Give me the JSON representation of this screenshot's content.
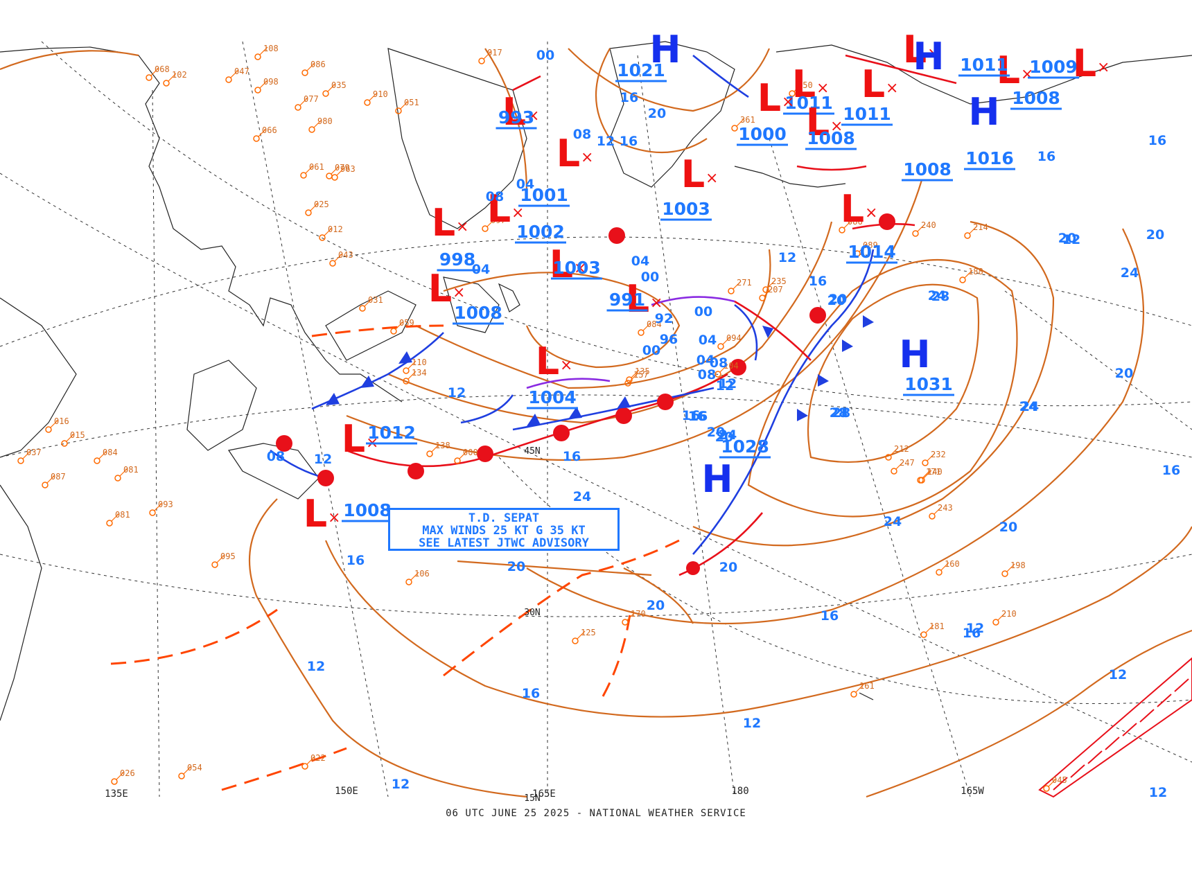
{
  "footer": "06 UTC JUNE 25 2025 - NATIONAL WEATHER SERVICE",
  "longitude_labels": [
    "135E",
    "150E",
    "165E",
    "180",
    "165W"
  ],
  "latitude_labels": [
    "15N",
    "30N",
    "45N"
  ],
  "advisory": {
    "line1": "T.D. SEPAT",
    "line2": "MAX WINDS 25 KT G 35 KT",
    "line3": "SEE LATEST JTWC ADVISORY"
  },
  "colors": {
    "isobar": "#d2691e",
    "low_symbol": "#ee1111",
    "high_symbol": "#1530ee",
    "labels": "#1f78ff",
    "cold_front": "#1f3fe0",
    "warm_front": "#e8101a",
    "occluded_front": "#8a2be2",
    "trough": "#ff4500"
  },
  "pressure_systems": [
    {
      "type": "L",
      "value": "993"
    },
    {
      "type": "L",
      "value": "1001"
    },
    {
      "type": "L",
      "value": "1002"
    },
    {
      "type": "L",
      "value": "998"
    },
    {
      "type": "L",
      "value": "1003"
    },
    {
      "type": "L",
      "value": "1003"
    },
    {
      "type": "L",
      "value": "991"
    },
    {
      "type": "L",
      "value": "1008"
    },
    {
      "type": "L",
      "value": "1004"
    },
    {
      "type": "L",
      "value": "1012"
    },
    {
      "type": "L",
      "value": "1008"
    },
    {
      "type": "L",
      "value": "1011"
    },
    {
      "type": "L",
      "value": "1011"
    },
    {
      "type": "L",
      "value": "1008"
    },
    {
      "type": "L",
      "value": "1014"
    },
    {
      "type": "L",
      "value": "1008"
    },
    {
      "type": "H",
      "value": "1021"
    },
    {
      "type": "H",
      "value": "1028"
    },
    {
      "type": "H",
      "value": "1031"
    },
    {
      "type": "H",
      "value": "1016"
    },
    {
      "type": "L",
      "value": "1008"
    },
    {
      "type": "L",
      "value": "1009"
    },
    {
      "type": "L",
      "value": "1000"
    },
    {
      "type": "H",
      "value": "1011"
    }
  ],
  "isobar_labels": [
    "00",
    "16",
    "20",
    "08",
    "12",
    "16",
    "04",
    "08",
    "04",
    "00",
    "04",
    "96",
    "92",
    "00",
    "04",
    "08",
    "12",
    "16",
    "20",
    "24",
    "28",
    "28",
    "24",
    "20",
    "24",
    "28",
    "24",
    "20",
    "16",
    "16",
    "12",
    "20",
    "24",
    "20",
    "16",
    "12",
    "16",
    "12",
    "16",
    "20",
    "24",
    "20",
    "16",
    "12",
    "08",
    "12",
    "12",
    "16",
    "20",
    "16",
    "12",
    "08",
    "04",
    "00",
    "12",
    "16",
    "20",
    "12",
    "16",
    "20",
    "24",
    "20",
    "16",
    "12",
    "12"
  ],
  "station_samples": [
    "108",
    "086",
    "035",
    "047",
    "098",
    "077",
    "910",
    "980",
    "066",
    "061",
    "079",
    "963",
    "025",
    "012",
    "043",
    "031",
    "059",
    "051",
    "017",
    "068",
    "102",
    "110",
    "134",
    "081",
    "081",
    "093",
    "095",
    "106",
    "125",
    "170",
    "160",
    "198",
    "210",
    "181",
    "161",
    "171",
    "140",
    "212",
    "247",
    "243",
    "232",
    "240",
    "214",
    "188",
    "235",
    "207",
    "271",
    "361",
    "050",
    "086",
    "089",
    "097",
    "084",
    "094",
    "104",
    "135",
    "157",
    "138",
    "000",
    "037",
    "045",
    "022",
    "054",
    "026",
    "015",
    "016",
    "087",
    "084"
  ]
}
